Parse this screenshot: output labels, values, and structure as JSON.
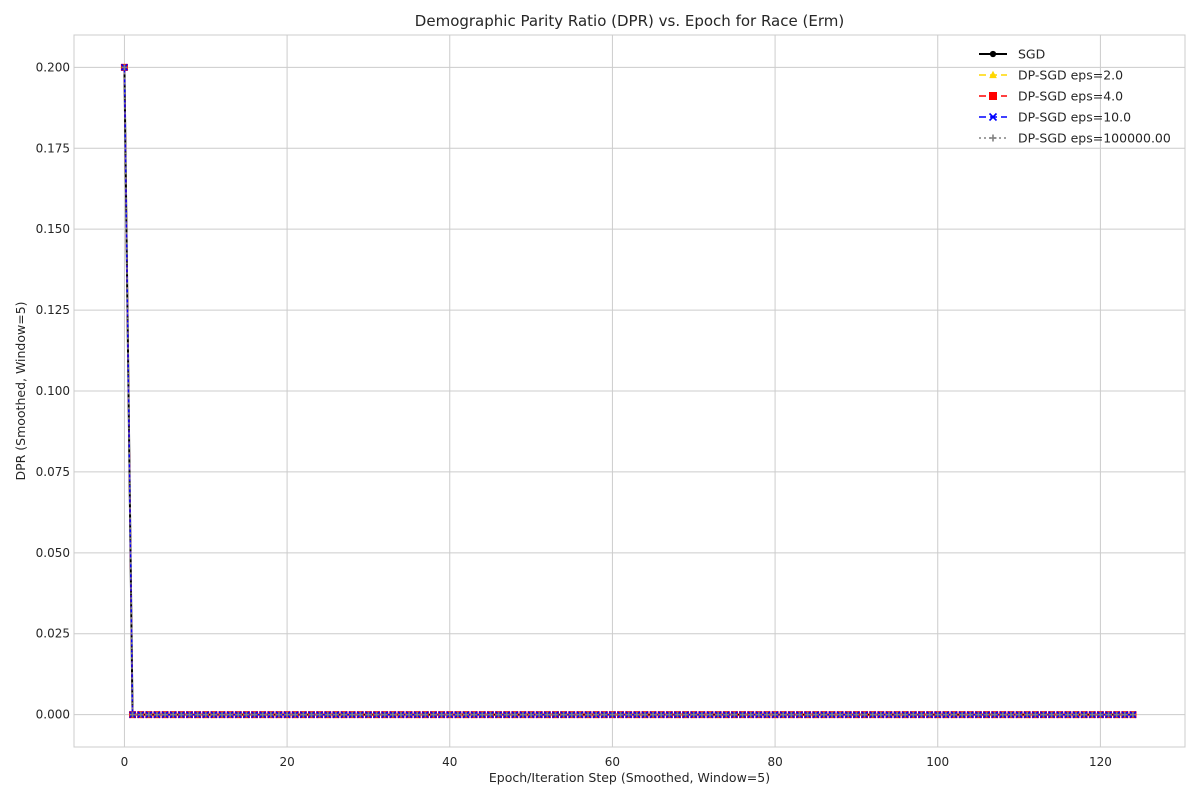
{
  "chart_data": {
    "type": "line",
    "title": "Demographic Parity Ratio (DPR) vs. Epoch for Race (Erm)",
    "xlabel": "Epoch/Iteration Step (Smoothed, Window=5)",
    "ylabel": "DPR (Smoothed, Window=5)",
    "xlim": [
      -6.2,
      130.4
    ],
    "ylim": [
      -0.01,
      0.21
    ],
    "xticks": [
      0,
      20,
      40,
      60,
      80,
      100,
      120
    ],
    "yticks": [
      0.0,
      0.025,
      0.05,
      0.075,
      0.1,
      0.125,
      0.15,
      0.175,
      0.2
    ],
    "xtick_labels": [
      "0",
      "20",
      "40",
      "60",
      "80",
      "100",
      "120"
    ],
    "ytick_labels": [
      "0.000",
      "0.025",
      "0.050",
      "0.075",
      "0.100",
      "0.125",
      "0.150",
      "0.175",
      "0.200"
    ],
    "grid": true,
    "legend_position": "top-right",
    "x_range": [
      0,
      124
    ],
    "series": [
      {
        "name": "SGD",
        "color": "#000000",
        "linestyle": "solid",
        "marker": "dot",
        "segments": [
          {
            "x": [
              0,
              1
            ],
            "y": [
              0.2,
              0.0
            ]
          },
          {
            "x_from": 1,
            "x_to": 124,
            "y": 0.0
          }
        ]
      },
      {
        "name": "DP-SGD eps=2.0",
        "color": "#FFD700",
        "linestyle": "dashed",
        "marker": "triangle",
        "segments": [
          {
            "x": [
              0,
              1
            ],
            "y": [
              0.2,
              0.0
            ]
          },
          {
            "x_from": 1,
            "x_to": 124,
            "y": 0.0
          }
        ]
      },
      {
        "name": "DP-SGD eps=4.0",
        "color": "#FF0000",
        "linestyle": "dashed",
        "marker": "square",
        "segments": [
          {
            "x": [
              0,
              1
            ],
            "y": [
              0.2,
              0.0
            ]
          },
          {
            "x_from": 1,
            "x_to": 124,
            "y": 0.0
          }
        ]
      },
      {
        "name": "DP-SGD eps=10.0",
        "color": "#0000FF",
        "linestyle": "dashed",
        "marker": "x",
        "segments": [
          {
            "x": [
              0,
              1
            ],
            "y": [
              0.2,
              0.0
            ]
          },
          {
            "x_from": 1,
            "x_to": 124,
            "y": 0.0
          }
        ]
      },
      {
        "name": "DP-SGD eps=100000.00",
        "color": "#808080",
        "linestyle": "dotted",
        "marker": "plus",
        "segments": [
          {
            "x": [
              0,
              1
            ],
            "y": [
              0.2,
              0.0
            ]
          },
          {
            "x_from": 1,
            "x_to": 124,
            "y": 0.0
          }
        ]
      }
    ]
  }
}
